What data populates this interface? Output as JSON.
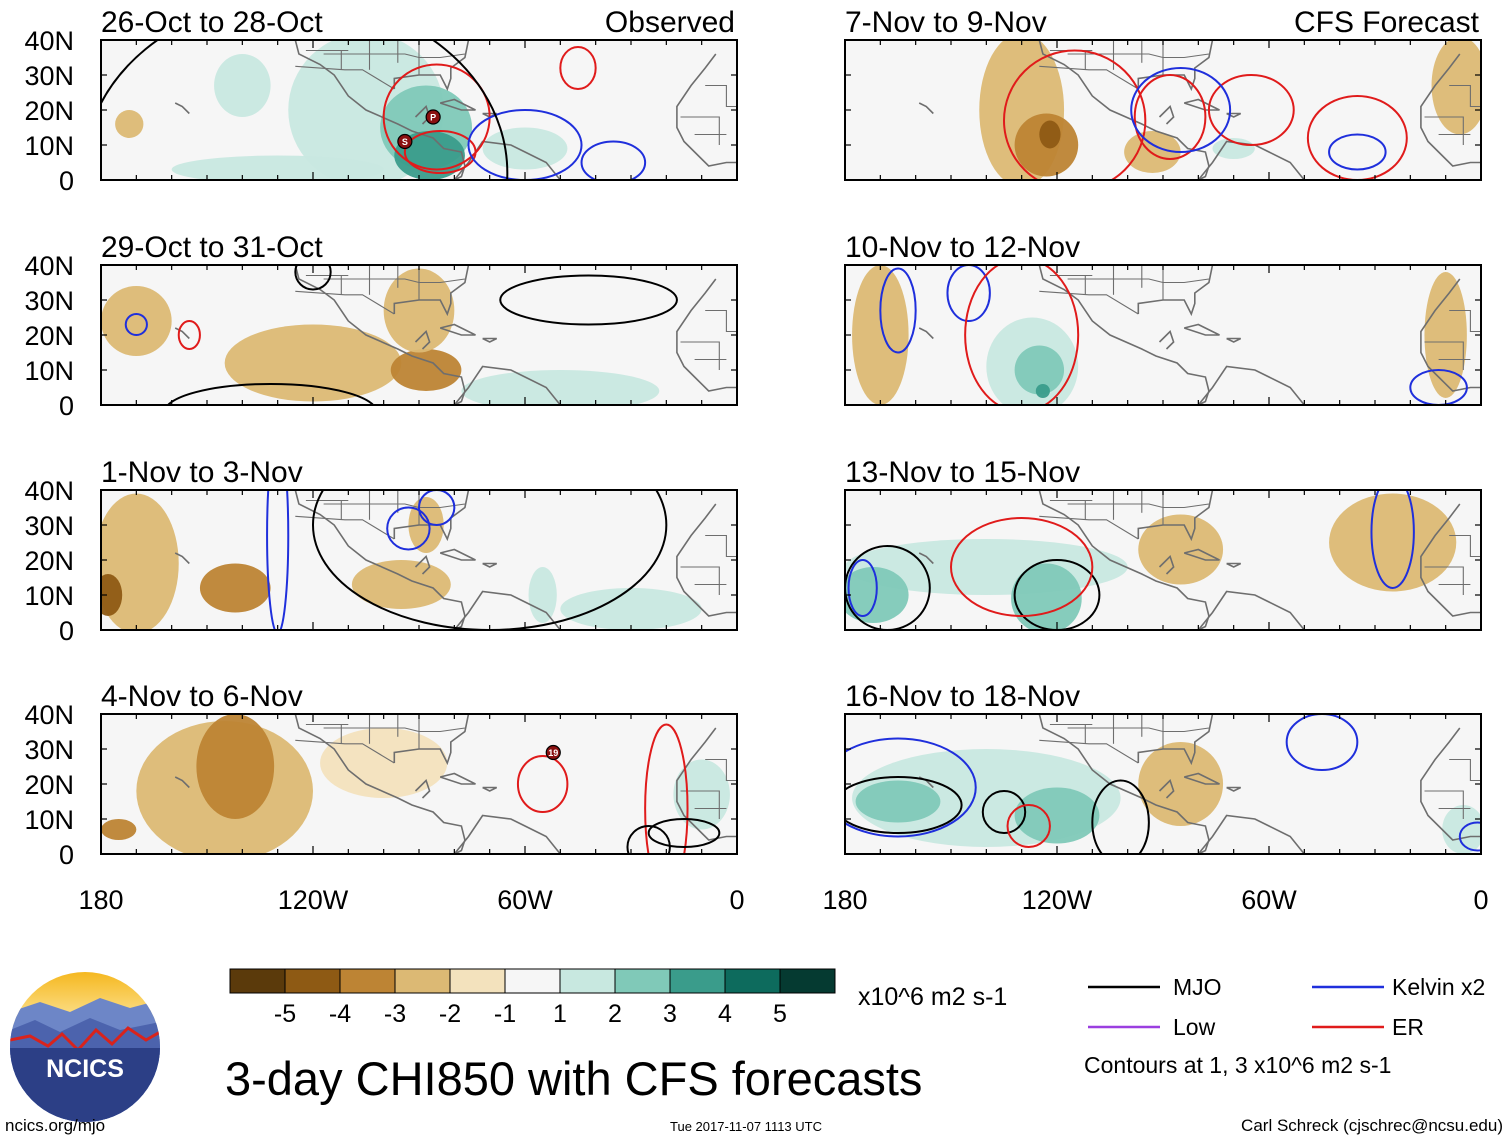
{
  "chart_data": {
    "type": "heatmap",
    "title": "3-day CHI850 with CFS forecasts",
    "variable": "CHI850",
    "units": "x10^6 m2 s-1",
    "contour_note": "Contours at 1, 3 x10^6 m2 s-1",
    "y_ticks": [
      "40N",
      "30N",
      "20N",
      "10N",
      "0"
    ],
    "y_range": [
      0,
      40
    ],
    "x_ticks": [
      "180",
      "120W",
      "60W",
      "0"
    ],
    "x_range_deg": [
      -180,
      0
    ],
    "column_headers": {
      "left": "Observed",
      "right": "CFS Forecast"
    },
    "panels": [
      {
        "period": "26-Oct to 28-Oct",
        "source": "Observed",
        "storm_markers": [
          "S",
          "P"
        ]
      },
      {
        "period": "29-Oct to 31-Oct",
        "source": "Observed",
        "storm_markers": []
      },
      {
        "period": "1-Nov to 3-Nov",
        "source": "Observed",
        "storm_markers": []
      },
      {
        "period": "4-Nov to 6-Nov",
        "source": "Observed",
        "storm_markers": [
          "19"
        ]
      },
      {
        "period": "7-Nov to 9-Nov",
        "source": "CFS Forecast",
        "storm_markers": []
      },
      {
        "period": "10-Nov to 12-Nov",
        "source": "CFS Forecast",
        "storm_markers": []
      },
      {
        "period": "13-Nov to 15-Nov",
        "source": "CFS Forecast",
        "storm_markers": []
      },
      {
        "period": "16-Nov to 18-Nov",
        "source": "CFS Forecast",
        "storm_markers": []
      }
    ],
    "colorbar": {
      "tick_labels": [
        "-5",
        "-4",
        "-3",
        "-2",
        "-1",
        "1",
        "2",
        "3",
        "4",
        "5"
      ],
      "colors": [
        "#5b3a0b",
        "#8e5a14",
        "#bd8434",
        "#dcb974",
        "#f3e2bd",
        "#f6f6f6",
        "#c8e8e0",
        "#80c9b8",
        "#3a9c8b",
        "#0d6b5d",
        "#053a31"
      ]
    },
    "legend": [
      {
        "label": "MJO",
        "color": "#000000"
      },
      {
        "label": "Kelvin x2",
        "color": "#1f2fdc"
      },
      {
        "label": "Low",
        "color": "#9b3fe0"
      },
      {
        "label": "ER",
        "color": "#e01b1b"
      }
    ]
  },
  "footer": {
    "logo_text": "NCICS",
    "url": "ncics.org/mjo",
    "timestamp": "Tue 2017-11-07 1113 UTC",
    "credit": "Carl Schreck (cjschrec@ncsu.edu)"
  },
  "theme": {
    "land": "#6e6e6e",
    "frame": "#000000",
    "neutral_fill": "#f6f6f6"
  }
}
